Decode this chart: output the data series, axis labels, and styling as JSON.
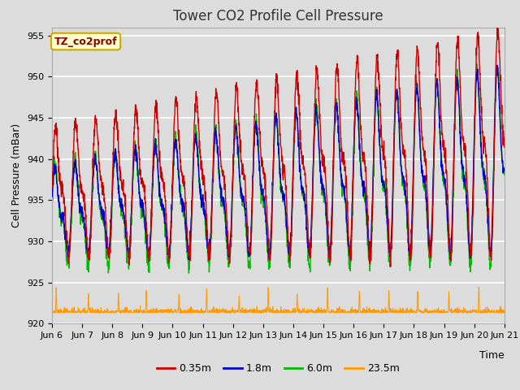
{
  "title": "Tower CO2 Profile Cell Pressure",
  "ylabel": "Cell Pressure (mBar)",
  "xlabel": "Time",
  "tag_label": "TZ_co2prof",
  "ylim": [
    920,
    956
  ],
  "yticks": [
    920,
    925,
    930,
    935,
    940,
    945,
    950,
    955
  ],
  "series_colors": {
    "0.35m": "#cc0000",
    "1.8m": "#0000cc",
    "6.0m": "#00bb00",
    "23.5m": "#ff9900"
  },
  "n_days": 15,
  "start_day": 6,
  "plot_bg_color": "#dcdcdc",
  "fig_bg_color": "#dcdcdc",
  "grid_color": "#ffffff",
  "title_fontsize": 12,
  "label_fontsize": 9,
  "tick_fontsize": 8,
  "legend_fontsize": 9,
  "tag_text_color": "#8b0000",
  "tag_box_face": "#ffffcc",
  "tag_box_edge": "#ccaa00"
}
